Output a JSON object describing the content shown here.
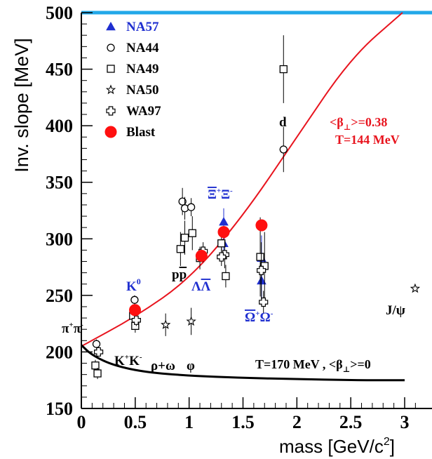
{
  "chart_data": {
    "type": "scatter",
    "title": "",
    "xlabel": "mass  [GeV/c",
    "xlabel_sup": "2",
    "xlabel_end": "]",
    "ylabel": "Inv. slope  [MeV]",
    "xlim": [
      0,
      3.15
    ],
    "ylim": [
      150,
      500
    ],
    "x_ticks": [
      0,
      0.5,
      1,
      1.5,
      2,
      2.5,
      3
    ],
    "x_tick_labels": [
      "0",
      "0.5",
      "1",
      "1.5",
      "2",
      "2.5",
      "3"
    ],
    "y_ticks": [
      150,
      200,
      250,
      300,
      350,
      400,
      450,
      500
    ],
    "y_tick_labels": [
      "150",
      "200",
      "250",
      "300",
      "350",
      "400",
      "450",
      "500"
    ],
    "legend": {
      "placement": "top-left",
      "entries": [
        {
          "label": "NA57",
          "marker": "triangle",
          "color": "#1f2fd0"
        },
        {
          "label": "NA44",
          "marker": "circle",
          "color": "#000000"
        },
        {
          "label": "NA49",
          "marker": "square",
          "color": "#000000"
        },
        {
          "label": "NA50",
          "marker": "star",
          "color": "#000000"
        },
        {
          "label": "WA97",
          "marker": "cross",
          "color": "#000000"
        },
        {
          "label": "Blast",
          "marker": "filled-circle",
          "color": "#ff1010"
        }
      ]
    },
    "series": [
      {
        "name": "NA57",
        "marker": "triangle",
        "color": "#1f2fd0",
        "points": [
          {
            "x": 1.115,
            "y": 287,
            "err": 6
          },
          {
            "x": 1.321,
            "y": 315,
            "err": 12
          },
          {
            "x": 1.321,
            "y": 296,
            "err": 10
          },
          {
            "x": 1.672,
            "y": 283,
            "err": 20
          },
          {
            "x": 1.672,
            "y": 263,
            "err": 18
          }
        ]
      },
      {
        "name": "NA44",
        "marker": "circle",
        "color": "#000000",
        "points": [
          {
            "x": 0.14,
            "y": 207,
            "err": 4
          },
          {
            "x": 0.494,
            "y": 246,
            "err": 4
          },
          {
            "x": 0.938,
            "y": 333,
            "err": 12
          },
          {
            "x": 0.96,
            "y": 327,
            "err": 10
          },
          {
            "x": 1.019,
            "y": 328,
            "err": 8
          },
          {
            "x": 1.876,
            "y": 379,
            "err": 20
          }
        ]
      },
      {
        "name": "NA49",
        "marker": "square",
        "color": "#000000",
        "points": [
          {
            "x": 0.13,
            "y": 188,
            "err": 5
          },
          {
            "x": 0.15,
            "y": 181,
            "err": 5
          },
          {
            "x": 0.48,
            "y": 232,
            "err": 6
          },
          {
            "x": 0.5,
            "y": 223,
            "err": 6
          },
          {
            "x": 0.92,
            "y": 291,
            "err": 15
          },
          {
            "x": 0.96,
            "y": 301,
            "err": 15
          },
          {
            "x": 1.03,
            "y": 305,
            "err": 15
          },
          {
            "x": 1.1,
            "y": 283,
            "err": 10
          },
          {
            "x": 1.3,
            "y": 296,
            "err": 10
          },
          {
            "x": 1.34,
            "y": 267,
            "err": 10
          },
          {
            "x": 1.66,
            "y": 284,
            "err": 35
          },
          {
            "x": 1.7,
            "y": 276,
            "err": 30
          },
          {
            "x": 1.876,
            "y": 450,
            "err": 30
          }
        ]
      },
      {
        "name": "NA50",
        "marker": "star",
        "color": "#000000",
        "points": [
          {
            "x": 0.782,
            "y": 224,
            "err": 10
          },
          {
            "x": 1.019,
            "y": 227,
            "err": 12
          },
          {
            "x": 3.097,
            "y": 256,
            "err": 0
          }
        ]
      },
      {
        "name": "WA97",
        "marker": "cross",
        "color": "#000000",
        "points": [
          {
            "x": 0.16,
            "y": 200,
            "err": 4
          },
          {
            "x": 0.51,
            "y": 228,
            "err": 5
          },
          {
            "x": 1.13,
            "y": 289,
            "err": 8
          },
          {
            "x": 1.33,
            "y": 286,
            "err": 12
          },
          {
            "x": 1.3,
            "y": 284,
            "err": 8
          },
          {
            "x": 1.67,
            "y": 272,
            "err": 25
          },
          {
            "x": 1.69,
            "y": 244,
            "err": 10
          }
        ]
      },
      {
        "name": "Blast",
        "marker": "filled-circle",
        "color": "#ff1010",
        "points": [
          {
            "x": 0.498,
            "y": 237
          },
          {
            "x": 1.115,
            "y": 285
          },
          {
            "x": 1.321,
            "y": 306
          },
          {
            "x": 1.672,
            "y": 312
          }
        ]
      }
    ],
    "curves": [
      {
        "color": "#e8141e",
        "points": [
          [
            0,
            205
          ],
          [
            0.5,
            231
          ],
          [
            1.0,
            264
          ],
          [
            1.5,
            320
          ],
          [
            2.0,
            390
          ],
          [
            2.5,
            460
          ],
          [
            2.98,
            500
          ]
        ]
      },
      {
        "color": "#000000",
        "points": [
          [
            0,
            206
          ],
          [
            0.1,
            197
          ],
          [
            0.3,
            188
          ],
          [
            0.6,
            182
          ],
          [
            1.0,
            179
          ],
          [
            1.5,
            177
          ],
          [
            2.0,
            176
          ],
          [
            2.5,
            175
          ],
          [
            3.0,
            175
          ]
        ]
      }
    ],
    "annotations": {
      "pion": "π+π-",
      "kaon_charged": "K+K-",
      "rho_omega": "ρ+ω",
      "phi": "φ",
      "k0": "K0",
      "proton": "pp",
      "lambda": "ΛΛ",
      "xi": "Ξ+Ξ-",
      "omega": "Ω+Ω-",
      "deuteron": "d",
      "jpsi": "J/ψ",
      "red_curve_line1": "<β⊥>=0.38",
      "red_curve_line2": "T=144 MeV",
      "black_curve": "T=170 MeV , <β⊥>=0"
    }
  }
}
